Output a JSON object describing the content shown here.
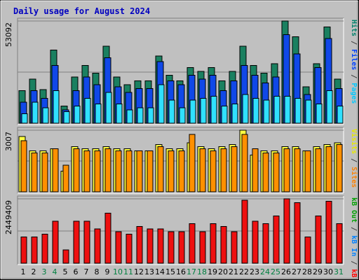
{
  "title": "Daily usage for August 2024",
  "right_labels": {
    "top": [
      {
        "text": "Pages",
        "color": "#00c8ff"
      },
      {
        "text": " / ",
        "color": "#404040"
      },
      {
        "text": "Files",
        "color": "#0040ff"
      },
      {
        "text": " / ",
        "color": "#404040"
      },
      {
        "text": "Hits",
        "color": "#00806a"
      }
    ],
    "mid": [
      {
        "text": "Sites",
        "color": "#ff8000"
      },
      {
        "text": " / ",
        "color": "#404040"
      },
      {
        "text": "Visits",
        "color": "#e8e800"
      }
    ],
    "bot": [
      {
        "text": "kB F",
        "color": "#ff0000"
      },
      {
        "text": " / ",
        "color": "#404040"
      },
      {
        "text": "kB In",
        "color": "#0080ff"
      },
      {
        "text": " / ",
        "color": "#404040"
      },
      {
        "text": "kB Out",
        "color": "#00a000"
      }
    ]
  },
  "colors": {
    "hits": "#1a8060",
    "files": "#1048e8",
    "pages": "#30e0ff",
    "visits": "#ffff40",
    "sites": "#ff9000",
    "kbf": "#ee1010",
    "weekday_label": "#000000",
    "weekend_label": "#008040"
  },
  "chart_data": {
    "type": "bar",
    "x": [
      "1",
      "2",
      "3",
      "4",
      "5",
      "6",
      "7",
      "8",
      "9",
      "10",
      "11",
      "12",
      "13",
      "14",
      "15",
      "16",
      "17",
      "18",
      "19",
      "20",
      "21",
      "22",
      "23",
      "24",
      "25",
      "26",
      "27",
      "28",
      "29",
      "30",
      "31"
    ],
    "weekend_days": [
      "3",
      "4",
      "10",
      "11",
      "17",
      "18",
      "24",
      "25",
      "31"
    ],
    "panels": [
      {
        "id": "top",
        "ymax_label": "53092",
        "ymax": 53092,
        "series": [
          {
            "name": "Hits",
            "values": [
              17000,
              23000,
              17500,
              38000,
              9000,
              24000,
              30000,
              26000,
              40000,
              24000,
              20000,
              22000,
              22000,
              35000,
              25000,
              22000,
              29000,
              27000,
              29000,
              22000,
              27000,
              40000,
              30000,
              26000,
              31000,
              53092,
              45000,
              19000,
              31000,
              50000,
              23000
            ]
          },
          {
            "name": "Files",
            "values": [
              11000,
              17000,
              13000,
              30000,
              7000,
              17000,
              24000,
              20000,
              34000,
              19000,
              16000,
              18000,
              18000,
              32000,
              22000,
              20000,
              25000,
              23000,
              25000,
              17000,
              22000,
              30000,
              25000,
              21000,
              24000,
              46000,
              36000,
              15000,
              29000,
              44000,
              18000
            ]
          },
          {
            "name": "Pages",
            "values": [
              5000,
              11000,
              8000,
              17000,
              6000,
              9000,
              13000,
              10000,
              16000,
              10000,
              7000,
              8000,
              8000,
              20000,
              12000,
              8000,
              12000,
              13000,
              14000,
              9000,
              10000,
              15000,
              13000,
              12000,
              14000,
              14000,
              13000,
              12000,
              10000,
              17000,
              9000
            ]
          }
        ]
      },
      {
        "id": "mid",
        "ymax_label": "3007",
        "ymax": 3007,
        "series": [
          {
            "name": "Visits",
            "values": [
              2700,
              2000,
              2000,
              2100,
              1000,
              2200,
              2100,
              2100,
              2200,
              2100,
              2100,
              2000,
              2000,
              2300,
              2100,
              2100,
              2400,
              2200,
              2100,
              2200,
              2300,
              3007,
              1800,
              2000,
              2000,
              2200,
              2200,
              2000,
              2200,
              2300,
              2400
            ]
          },
          {
            "name": "Sites",
            "values": [
              2500,
              1900,
              1900,
              2100,
              1300,
              2100,
              2000,
              2000,
              2100,
              2000,
              2000,
              2000,
              2000,
              2200,
              2000,
              2000,
              2800,
              2100,
              2000,
              2100,
              2200,
              2800,
              2100,
              1900,
              1900,
              2100,
              2100,
              2000,
              2100,
              2200,
              2300
            ]
          }
        ]
      },
      {
        "id": "bot",
        "ymax_label": "2449409",
        "ymax": 2449409,
        "series": [
          {
            "name": "kB F",
            "values": [
              1000000,
              1000000,
              1100000,
              1600000,
              500000,
              1600000,
              1600000,
              1300000,
              1900000,
              1200000,
              1100000,
              1400000,
              1300000,
              1300000,
              1200000,
              1200000,
              1500000,
              1200000,
              1500000,
              1400000,
              1200000,
              2400000,
              1600000,
              1500000,
              1800000,
              2449409,
              2300000,
              1000000,
              1800000,
              2350000,
              1500000
            ]
          }
        ]
      }
    ]
  }
}
